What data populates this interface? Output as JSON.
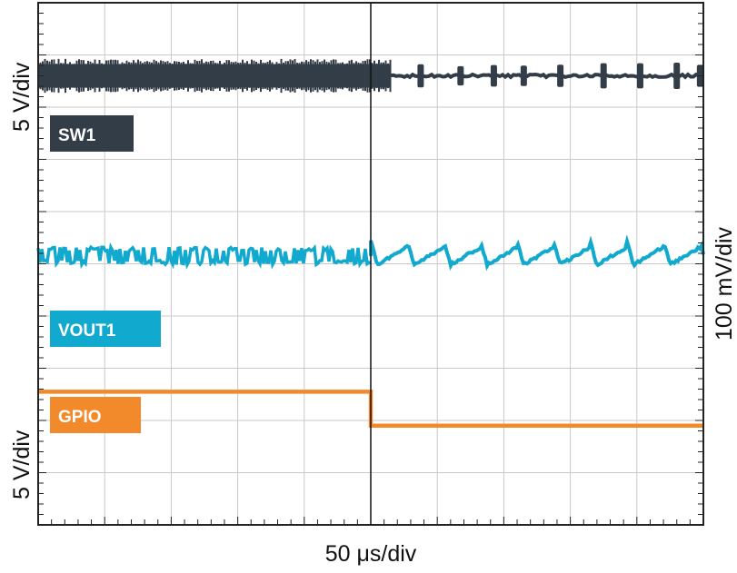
{
  "chart_data": {
    "type": "line",
    "title": "",
    "xlabel": "50 μs/div",
    "ylabel_left_top": "5 V/div",
    "ylabel_left_bottom": "5 V/div",
    "ylabel_right": "100 mV/div",
    "x_divisions": 10,
    "y_divisions": 10,
    "trigger_x_div": 5.0,
    "grid": true,
    "series": [
      {
        "name": "SW1",
        "color": "#333d47",
        "level_div": 1.4,
        "band_div": 0.45,
        "switching_until_div": 5.3,
        "burst_pulses_div": [
          5.75,
          6.35,
          6.85,
          7.3,
          7.85,
          8.5,
          9.05,
          9.6,
          9.95
        ],
        "pulse_height_div": 0.45
      },
      {
        "name": "VOUT1",
        "color": "#12a9cf",
        "level_div": 4.85,
        "ripple_div": 0.14,
        "ripple_after_div": 0.28
      },
      {
        "name": "GPIO",
        "color": "#f28a2b",
        "high_div": 7.45,
        "low_div": 8.1,
        "edge_div": 5.0
      }
    ]
  }
}
